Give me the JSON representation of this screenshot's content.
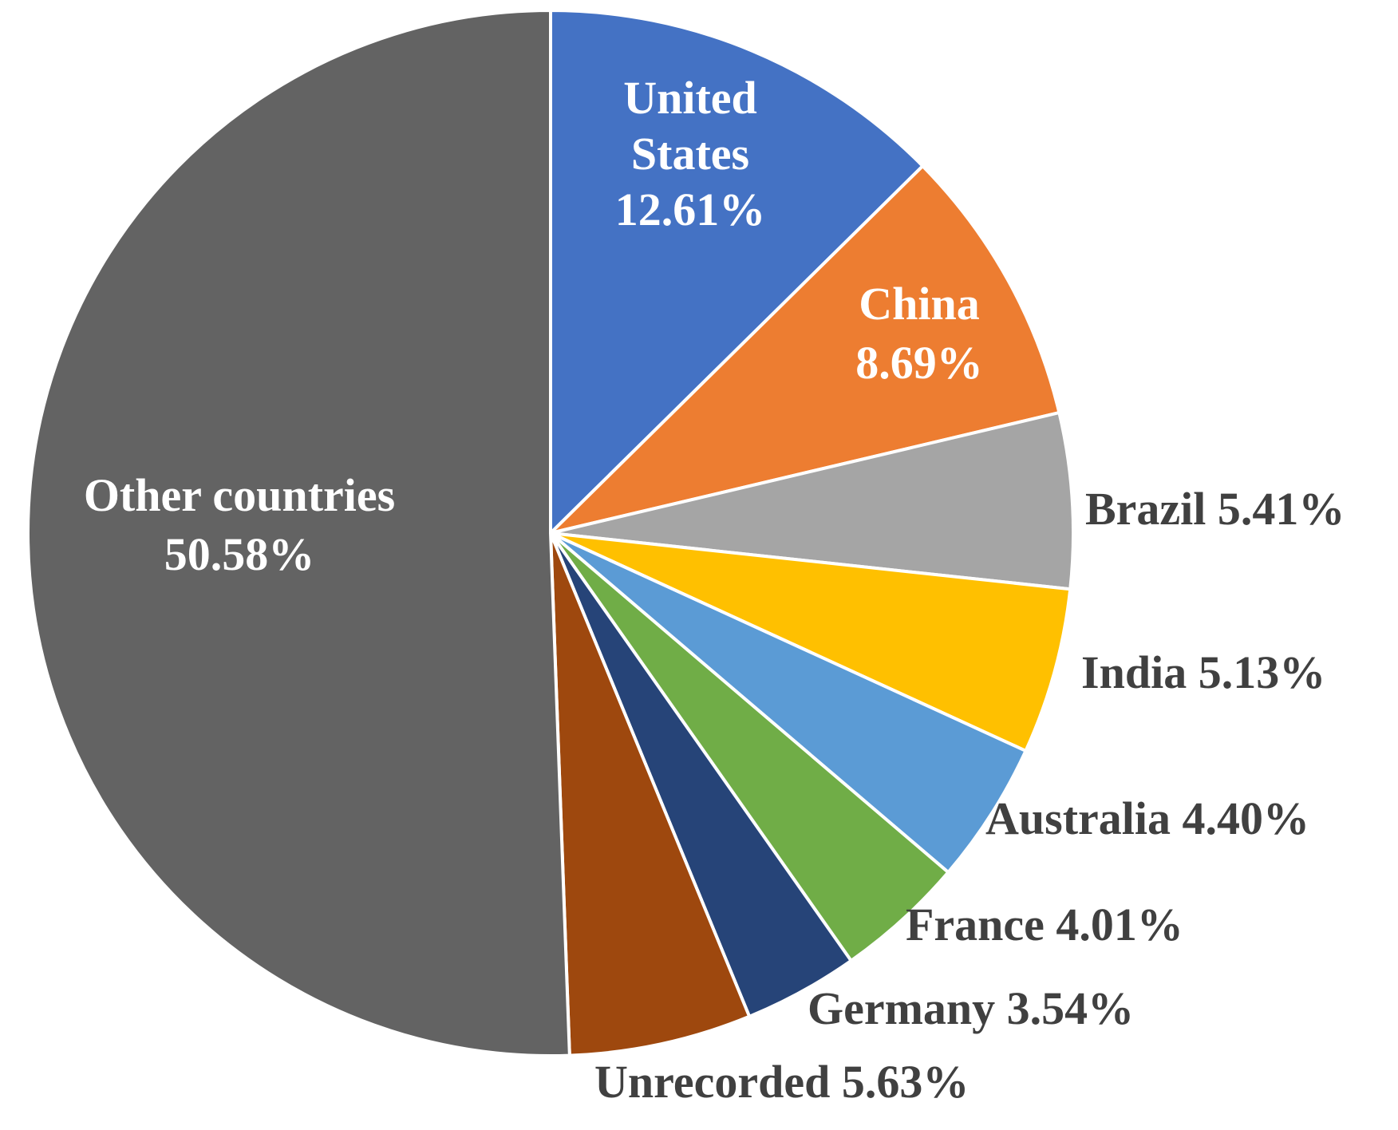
{
  "chart_data": {
    "type": "pie",
    "title": "",
    "slices": [
      {
        "label": "United States",
        "label_lines": [
          "United",
          "States"
        ],
        "value_text": "12.61%",
        "value": 12.61,
        "color": "#4472C4",
        "label_color": "#ffffff"
      },
      {
        "label": "China",
        "label_lines": [
          "China"
        ],
        "value_text": "8.69%",
        "value": 8.69,
        "color": "#ED7D31",
        "label_color": "#ffffff"
      },
      {
        "label": "Brazil",
        "label_lines": [
          "Brazil"
        ],
        "value_text": "5.41%",
        "value": 5.41,
        "color": "#A5A5A5",
        "label_color": "#404040"
      },
      {
        "label": "India",
        "label_lines": [
          "India"
        ],
        "value_text": "5.13%",
        "value": 5.13,
        "color": "#FFC000",
        "label_color": "#404040"
      },
      {
        "label": "Australia",
        "label_lines": [
          "Australia"
        ],
        "value_text": "4.40%",
        "value": 4.4,
        "color": "#5B9BD5",
        "label_color": "#404040"
      },
      {
        "label": "France",
        "label_lines": [
          "France"
        ],
        "value_text": "4.01%",
        "value": 4.01,
        "color": "#70AD47",
        "label_color": "#404040"
      },
      {
        "label": "Germany",
        "label_lines": [
          "Germany"
        ],
        "value_text": "3.54%",
        "value": 3.54,
        "color": "#264478",
        "label_color": "#404040"
      },
      {
        "label": "Unrecorded",
        "label_lines": [
          "Unrecorded"
        ],
        "value_text": "5.63%",
        "value": 5.63,
        "color": "#9E480E",
        "label_color": "#404040"
      },
      {
        "label": "Other countries",
        "label_lines": [
          "Other countries"
        ],
        "value_text": "50.58%",
        "value": 50.58,
        "color": "#636363",
        "label_color": "#ffffff"
      }
    ],
    "legend": "none"
  }
}
